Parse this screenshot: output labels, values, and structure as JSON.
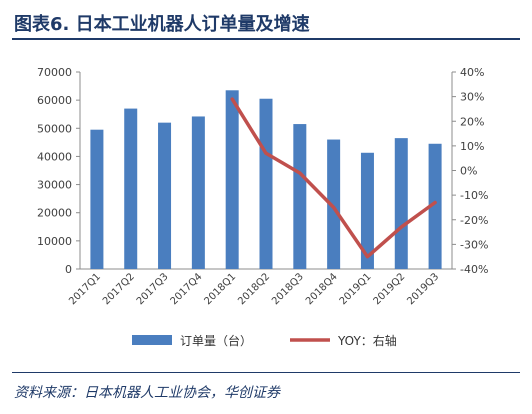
{
  "header": {
    "title": "图表6.  日本工业机器人订单量及增速"
  },
  "footer": {
    "source": "资料来源：日本机器人工业协会，华创证券"
  },
  "colors": {
    "bar": "#4a7ebf",
    "line": "#c0504d",
    "title": "#1f3a68",
    "axis_text": "#404040"
  },
  "chart_data": {
    "type": "bar",
    "categories": [
      "2017Q1",
      "2017Q2",
      "2017Q3",
      "2017Q4",
      "2018Q1",
      "2018Q2",
      "2018Q3",
      "2018Q4",
      "2019Q1",
      "2019Q2",
      "2019Q3"
    ],
    "series": [
      {
        "name": "订单量（台）",
        "type": "bar",
        "axis": "left",
        "values": [
          49500,
          57000,
          52000,
          54200,
          63500,
          60500,
          51500,
          46000,
          41300,
          46500,
          44500
        ]
      },
      {
        "name": "YOY：右轴",
        "type": "line",
        "axis": "right",
        "values": [
          null,
          null,
          null,
          null,
          0.29,
          0.07,
          -0.01,
          -0.15,
          -0.35,
          -0.23,
          -0.13
        ]
      }
    ],
    "y_left": {
      "ylim": [
        0,
        70000
      ],
      "ticks": [
        "0",
        "10000",
        "20000",
        "30000",
        "40000",
        "50000",
        "60000",
        "70000"
      ]
    },
    "y_right": {
      "ylim": [
        -0.4,
        0.4
      ],
      "ticks": [
        "-40%",
        "-30%",
        "-20%",
        "-10%",
        "0%",
        "10%",
        "20%",
        "30%",
        "40%"
      ]
    },
    "legend": {
      "position": "bottom"
    },
    "grid": false
  }
}
